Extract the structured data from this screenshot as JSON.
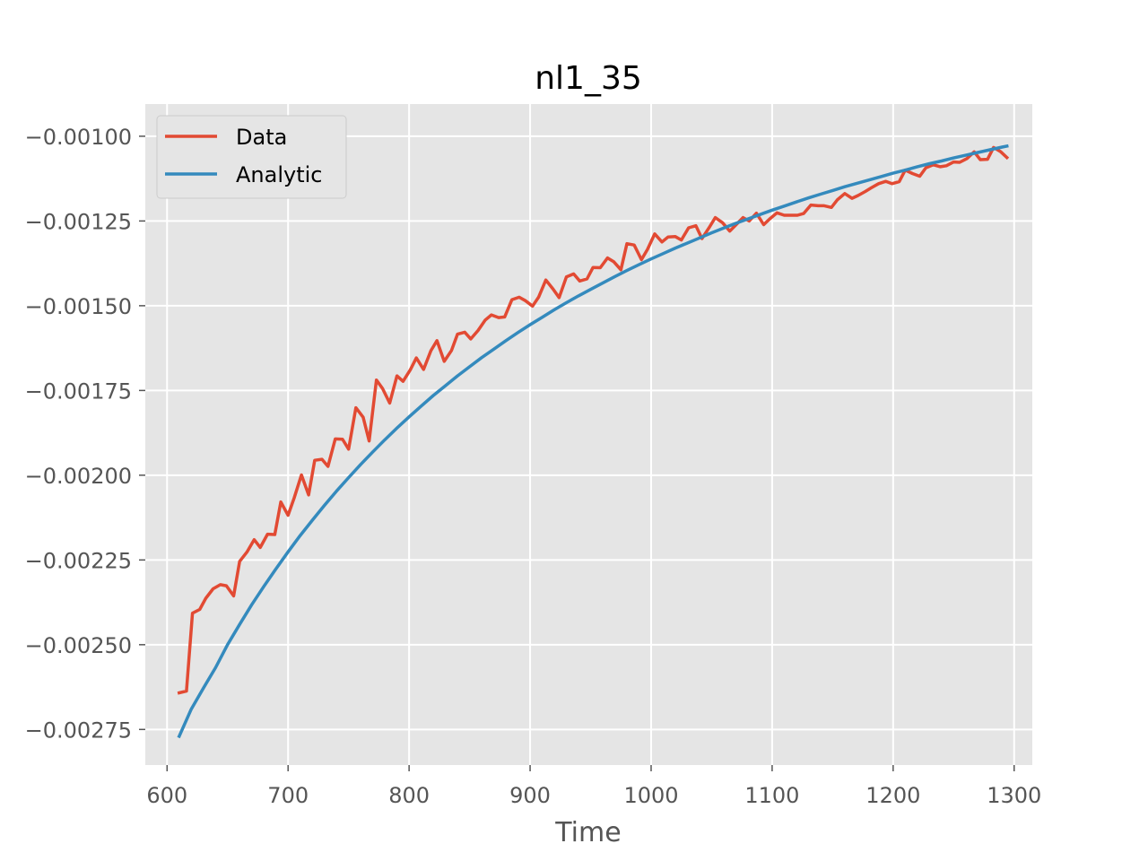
{
  "chart_data": {
    "type": "line",
    "title": "nl1_35",
    "xlabel": "Time",
    "ylabel": "",
    "xlim": [
      582,
      1315
    ],
    "ylim": [
      -0.002855,
      -0.000905
    ],
    "x_ticks": [
      600,
      700,
      800,
      900,
      1000,
      1100,
      1200,
      1300
    ],
    "x_tick_labels": [
      "600",
      "700",
      "800",
      "900",
      "1000",
      "1100",
      "1200",
      "1300"
    ],
    "y_ticks": [
      -0.001,
      -0.00125,
      -0.0015,
      -0.00175,
      -0.002,
      -0.00225,
      -0.0025,
      -0.00275
    ],
    "y_tick_labels": [
      "−0.00100",
      "−0.00125",
      "−0.00150",
      "−0.00175",
      "−0.00200",
      "−0.00225",
      "−0.00250",
      "−0.00275"
    ],
    "grid": true,
    "legend_position": "top-left",
    "background": "#e5e5e5",
    "series": [
      {
        "name": "Data",
        "color": "#e24a33",
        "points": [
          [
            610,
            -0.002642
          ],
          [
            616,
            -0.002637
          ],
          [
            621,
            -0.002407
          ],
          [
            627,
            -0.002396
          ],
          [
            632,
            -0.002363
          ],
          [
            638,
            -0.002335
          ],
          [
            644,
            -0.002323
          ],
          [
            649,
            -0.002326
          ],
          [
            655,
            -0.002356
          ],
          [
            660,
            -0.002254
          ],
          [
            666,
            -0.002227
          ],
          [
            672,
            -0.00219
          ],
          [
            677,
            -0.002213
          ],
          [
            683,
            -0.002174
          ],
          [
            689,
            -0.002175
          ],
          [
            694,
            -0.002079
          ],
          [
            700,
            -0.002118
          ],
          [
            705,
            -0.002067
          ],
          [
            711,
            -0.001999
          ],
          [
            717,
            -0.002058
          ],
          [
            722,
            -0.001956
          ],
          [
            728,
            -0.001953
          ],
          [
            733,
            -0.001974
          ],
          [
            739,
            -0.001893
          ],
          [
            745,
            -0.001894
          ],
          [
            750,
            -0.001923
          ],
          [
            756,
            -0.001801
          ],
          [
            762,
            -0.001829
          ],
          [
            767,
            -0.001899
          ],
          [
            773,
            -0.001719
          ],
          [
            778,
            -0.001744
          ],
          [
            784,
            -0.001787
          ],
          [
            790,
            -0.001707
          ],
          [
            795,
            -0.001723
          ],
          [
            801,
            -0.001689
          ],
          [
            806,
            -0.001654
          ],
          [
            812,
            -0.001688
          ],
          [
            818,
            -0.001633
          ],
          [
            823,
            -0.001603
          ],
          [
            829,
            -0.001664
          ],
          [
            835,
            -0.001632
          ],
          [
            840,
            -0.001584
          ],
          [
            846,
            -0.001578
          ],
          [
            851,
            -0.001598
          ],
          [
            857,
            -0.001573
          ],
          [
            863,
            -0.001542
          ],
          [
            868,
            -0.001527
          ],
          [
            874,
            -0.001535
          ],
          [
            879,
            -0.001533
          ],
          [
            885,
            -0.001482
          ],
          [
            891,
            -0.001475
          ],
          [
            896,
            -0.001485
          ],
          [
            902,
            -0.001501
          ],
          [
            907,
            -0.001475
          ],
          [
            913,
            -0.001424
          ],
          [
            919,
            -0.001451
          ],
          [
            924,
            -0.001476
          ],
          [
            930,
            -0.001415
          ],
          [
            936,
            -0.001406
          ],
          [
            941,
            -0.001427
          ],
          [
            947,
            -0.001421
          ],
          [
            952,
            -0.001387
          ],
          [
            958,
            -0.001388
          ],
          [
            964,
            -0.001359
          ],
          [
            969,
            -0.00137
          ],
          [
            975,
            -0.001394
          ],
          [
            980,
            -0.001317
          ],
          [
            986,
            -0.001321
          ],
          [
            992,
            -0.001364
          ],
          [
            997,
            -0.001334
          ],
          [
            1003,
            -0.001288
          ],
          [
            1009,
            -0.001312
          ],
          [
            1014,
            -0.001297
          ],
          [
            1020,
            -0.001296
          ],
          [
            1025,
            -0.001306
          ],
          [
            1031,
            -0.00127
          ],
          [
            1037,
            -0.001264
          ],
          [
            1042,
            -0.001302
          ],
          [
            1048,
            -0.001269
          ],
          [
            1053,
            -0.00124
          ],
          [
            1059,
            -0.001255
          ],
          [
            1065,
            -0.00128
          ],
          [
            1070,
            -0.001262
          ],
          [
            1076,
            -0.00124
          ],
          [
            1081,
            -0.00125
          ],
          [
            1087,
            -0.001227
          ],
          [
            1093,
            -0.001261
          ],
          [
            1098,
            -0.001244
          ],
          [
            1104,
            -0.001226
          ],
          [
            1110,
            -0.001233
          ],
          [
            1115,
            -0.001233
          ],
          [
            1121,
            -0.001233
          ],
          [
            1126,
            -0.001228
          ],
          [
            1132,
            -0.001203
          ],
          [
            1138,
            -0.001205
          ],
          [
            1143,
            -0.001205
          ],
          [
            1149,
            -0.00121
          ],
          [
            1154,
            -0.001187
          ],
          [
            1160,
            -0.001169
          ],
          [
            1166,
            -0.001183
          ],
          [
            1171,
            -0.001175
          ],
          [
            1177,
            -0.001163
          ],
          [
            1182,
            -0.001152
          ],
          [
            1188,
            -0.00114
          ],
          [
            1194,
            -0.001133
          ],
          [
            1199,
            -0.00114
          ],
          [
            1205,
            -0.001134
          ],
          [
            1210,
            -0.0011
          ],
          [
            1216,
            -0.00111
          ],
          [
            1222,
            -0.001118
          ],
          [
            1227,
            -0.001093
          ],
          [
            1233,
            -0.001084
          ],
          [
            1239,
            -0.00109
          ],
          [
            1244,
            -0.001087
          ],
          [
            1250,
            -0.001076
          ],
          [
            1255,
            -0.001077
          ],
          [
            1261,
            -0.001066
          ],
          [
            1267,
            -0.001046
          ],
          [
            1272,
            -0.001069
          ],
          [
            1278,
            -0.001068
          ],
          [
            1283,
            -0.001033
          ],
          [
            1289,
            -0.001046
          ],
          [
            1294,
            -0.001063
          ]
        ]
      },
      {
        "name": "Analytic",
        "color": "#348abd",
        "points": [
          [
            610,
            -0.00277
          ],
          [
            620,
            -0.00269
          ],
          [
            630,
            -0.002628
          ],
          [
            640,
            -0.002568
          ],
          [
            650,
            -0.0025
          ],
          [
            660,
            -0.00244
          ],
          [
            670,
            -0.002382
          ],
          [
            680,
            -0.002328
          ],
          [
            690,
            -0.002276
          ],
          [
            700,
            -0.002226
          ],
          [
            710,
            -0.002178
          ],
          [
            720,
            -0.002133
          ],
          [
            730,
            -0.002089
          ],
          [
            740,
            -0.002047
          ],
          [
            750,
            -0.002007
          ],
          [
            760,
            -0.001968
          ],
          [
            770,
            -0.001931
          ],
          [
            780,
            -0.001895
          ],
          [
            790,
            -0.001861
          ],
          [
            800,
            -0.001828
          ],
          [
            810,
            -0.001796
          ],
          [
            820,
            -0.001765
          ],
          [
            830,
            -0.001736
          ],
          [
            840,
            -0.001707
          ],
          [
            850,
            -0.00168
          ],
          [
            860,
            -0.001653
          ],
          [
            870,
            -0.001628
          ],
          [
            880,
            -0.001603
          ],
          [
            890,
            -0.001579
          ],
          [
            900,
            -0.001556
          ],
          [
            910,
            -0.001534
          ],
          [
            920,
            -0.001512
          ],
          [
            930,
            -0.001491
          ],
          [
            940,
            -0.001471
          ],
          [
            950,
            -0.001452
          ],
          [
            960,
            -0.001433
          ],
          [
            970,
            -0.001414
          ],
          [
            980,
            -0.001396
          ],
          [
            990,
            -0.001379
          ],
          [
            1000,
            -0.001362
          ],
          [
            1010,
            -0.001346
          ],
          [
            1020,
            -0.00133
          ],
          [
            1030,
            -0.001315
          ],
          [
            1040,
            -0.0013
          ],
          [
            1050,
            -0.001285
          ],
          [
            1060,
            -0.001271
          ],
          [
            1070,
            -0.001257
          ],
          [
            1080,
            -0.001244
          ],
          [
            1090,
            -0.001231
          ],
          [
            1100,
            -0.001218
          ],
          [
            1110,
            -0.001206
          ],
          [
            1120,
            -0.001194
          ],
          [
            1130,
            -0.001182
          ],
          [
            1140,
            -0.001171
          ],
          [
            1150,
            -0.00116
          ],
          [
            1160,
            -0.001149
          ],
          [
            1170,
            -0.001139
          ],
          [
            1180,
            -0.001129
          ],
          [
            1190,
            -0.001119
          ],
          [
            1200,
            -0.001109
          ],
          [
            1210,
            -0.0011
          ],
          [
            1220,
            -0.00109
          ],
          [
            1230,
            -0.001081
          ],
          [
            1240,
            -0.001073
          ],
          [
            1250,
            -0.001064
          ],
          [
            1260,
            -0.001056
          ],
          [
            1270,
            -0.001048
          ],
          [
            1280,
            -0.00104
          ],
          [
            1290,
            -0.001032
          ],
          [
            1294,
            -0.001029
          ]
        ]
      }
    ]
  }
}
